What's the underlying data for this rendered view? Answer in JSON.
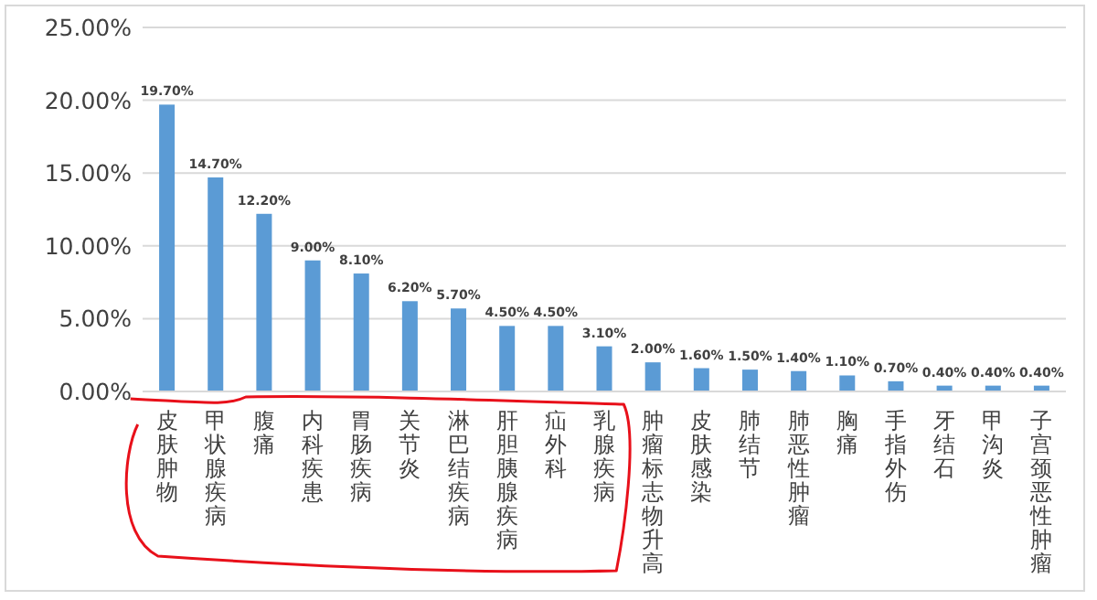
{
  "chart_data": {
    "type": "bar",
    "categories": [
      "皮肤肿物",
      "甲状腺疾病",
      "腹痛",
      "内科疾患",
      "胃肠疾病",
      "关节炎",
      "淋巴结疾病",
      "肝胆胰腺疾病",
      "疝外科",
      "乳腺疾病",
      "肿瘤标志物升高",
      "皮肤感染",
      "肺结节",
      "肺恶性肿瘤",
      "胸痛",
      "手指外伤",
      "牙结石",
      "甲沟炎",
      "子宫颈恶性肿瘤"
    ],
    "values": [
      19.7,
      14.7,
      12.2,
      9.0,
      8.1,
      6.2,
      5.7,
      4.5,
      4.5,
      3.1,
      2.0,
      1.6,
      1.5,
      1.4,
      1.1,
      0.7,
      0.4,
      0.4,
      0.4
    ],
    "value_labels": [
      "19.70%",
      "14.70%",
      "12.20%",
      "9.00%",
      "8.10%",
      "6.20%",
      "5.70%",
      "4.50%",
      "4.50%",
      "3.10%",
      "2.00%",
      "1.60%",
      "1.50%",
      "1.40%",
      "1.10%",
      "0.70%",
      "0.40%",
      "0.40%",
      "0.40%"
    ],
    "color": "#5b9bd5",
    "ylim": [
      0,
      25
    ],
    "yticks": [
      {
        "value": 0,
        "label": "0.00%"
      },
      {
        "value": 5,
        "label": "5.00%"
      },
      {
        "value": 10,
        "label": "10.00%"
      },
      {
        "value": 15,
        "label": "15.00%"
      },
      {
        "value": 20,
        "label": "20.00%"
      },
      {
        "value": 25,
        "label": "25.00%"
      }
    ],
    "grid": "y"
  }
}
